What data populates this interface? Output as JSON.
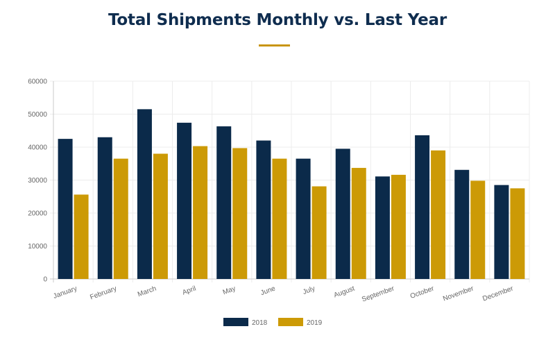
{
  "title": "Total Shipments Monthly vs. Last Year",
  "colors": {
    "title": "#0f2d4f",
    "accent": "#c8950f"
  },
  "chart_data": {
    "type": "bar",
    "categories": [
      "January",
      "February",
      "March",
      "April",
      "May",
      "June",
      "July",
      "August",
      "September",
      "October",
      "November",
      "December"
    ],
    "series": [
      {
        "name": "2018",
        "color": "#0b2a4a",
        "values": [
          42500,
          43000,
          51500,
          47400,
          46300,
          42000,
          36500,
          39500,
          31100,
          43600,
          33100,
          28500
        ]
      },
      {
        "name": "2019",
        "color": "#cc9a06",
        "values": [
          25600,
          36500,
          38000,
          40300,
          39700,
          36500,
          28100,
          33700,
          31600,
          39000,
          29800,
          27500
        ]
      }
    ],
    "ylim": [
      0,
      60000
    ],
    "yticks": [
      0,
      10000,
      20000,
      30000,
      40000,
      50000,
      60000
    ],
    "grid": true,
    "legend_position": "bottom-center",
    "xlabel": "",
    "ylabel": ""
  }
}
